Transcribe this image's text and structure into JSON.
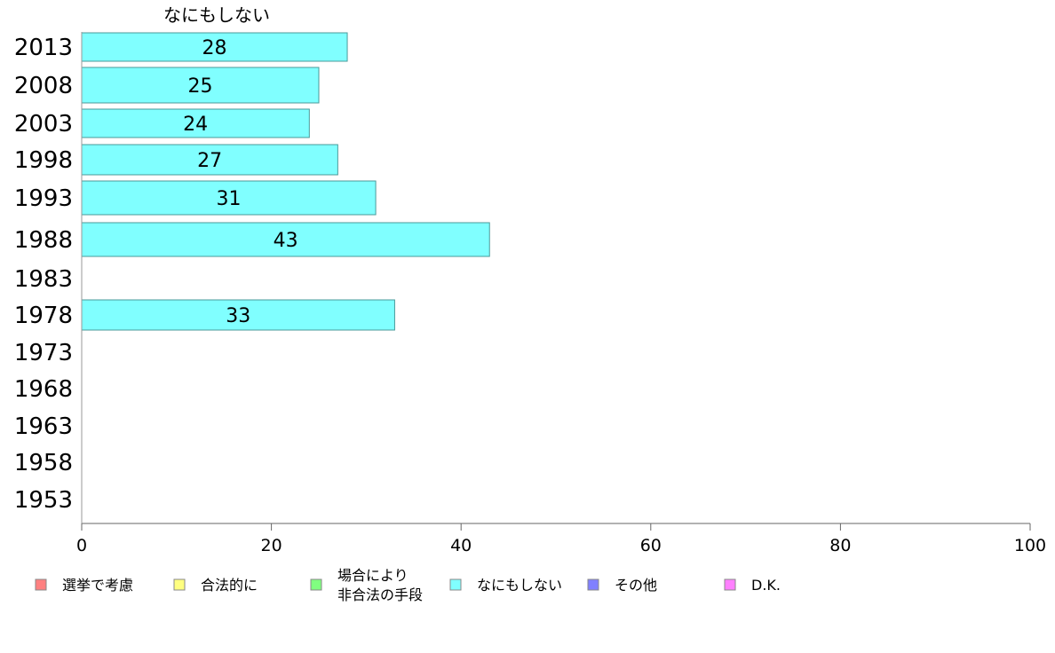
{
  "chart_data": {
    "type": "bar",
    "orientation": "horizontal",
    "series_label": "なにもしない",
    "categories": [
      "2013",
      "2008",
      "2003",
      "1998",
      "1993",
      "1988",
      "1983",
      "1978",
      "1973",
      "1968",
      "1963",
      "1958",
      "1953"
    ],
    "values": [
      28,
      25,
      24,
      27,
      31,
      43,
      null,
      33,
      null,
      null,
      null,
      null,
      null
    ],
    "xlim": [
      0,
      100
    ],
    "xticks": [
      0,
      20,
      40,
      60,
      80,
      100
    ],
    "bar_color": "#80ffff",
    "bar_edge_color": "#4a9a9a",
    "legend": {
      "placement": "bottom",
      "entries": [
        {
          "lines": [
            "選挙で考慮"
          ],
          "color": "#ff8080"
        },
        {
          "lines": [
            "合法的に"
          ],
          "color": "#ffff80"
        },
        {
          "lines": [
            "場合により",
            "非合法の手段"
          ],
          "color": "#80ff80"
        },
        {
          "lines": [
            "なにもしない"
          ],
          "color": "#80ffff"
        },
        {
          "lines": [
            "その他"
          ],
          "color": "#8080ff"
        },
        {
          "lines": [
            "D.K."
          ],
          "color": "#ff80ff"
        }
      ]
    }
  }
}
